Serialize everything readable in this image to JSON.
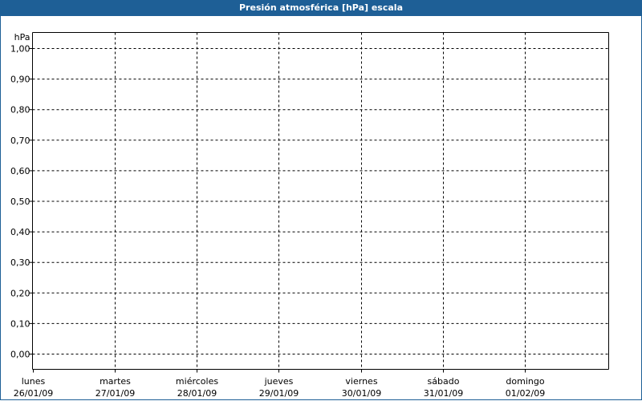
{
  "title": "Presión atmosférica [hPa] escala",
  "colors": {
    "titlebar": "#1e5f96",
    "grid": "#000000"
  },
  "chart_data": {
    "type": "line",
    "title": "Presión atmosférica [hPa] escala",
    "ylabel": "hPa",
    "xlabel": "",
    "ylim": [
      0,
      1
    ],
    "yticks": [
      "1,00",
      "0,90",
      "0,80",
      "0,70",
      "0,60",
      "0,50",
      "0,40",
      "0,30",
      "0,20",
      "0,10",
      "0,00"
    ],
    "categories": [
      {
        "day": "lunes",
        "date": "26/01/09"
      },
      {
        "day": "martes",
        "date": "27/01/09"
      },
      {
        "day": "miércoles",
        "date": "28/01/09"
      },
      {
        "day": "jueves",
        "date": "29/01/09"
      },
      {
        "day": "viernes",
        "date": "30/01/09"
      },
      {
        "day": "sábado",
        "date": "31/01/09"
      },
      {
        "day": "domingo",
        "date": "01/02/09"
      }
    ],
    "grid": true,
    "series": []
  }
}
